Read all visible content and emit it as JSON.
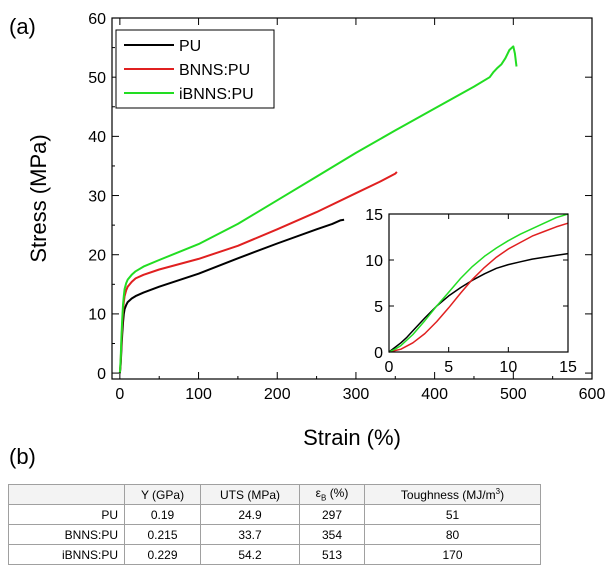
{
  "panels": {
    "a": "(a)",
    "b": "(b)"
  },
  "colors": {
    "PU": "#000000",
    "BNNS:PU": "#e02020",
    "iBNNS:PU": "#22dd22"
  },
  "chart_data": [
    {
      "type": "line",
      "title": "",
      "xlabel": "Strain (%)",
      "ylabel": "Stress (MPa)",
      "xlim": [
        -10,
        600
      ],
      "ylim": [
        -1,
        60
      ],
      "xticks": [
        0,
        100,
        200,
        300,
        400,
        500,
        600
      ],
      "yticks": [
        0,
        10,
        20,
        30,
        40,
        50,
        60
      ],
      "legend": "top-left",
      "series": [
        {
          "name": "PU",
          "color": "#000000",
          "x": [
            0,
            1,
            2,
            3,
            4,
            5,
            6,
            8,
            10,
            15,
            20,
            30,
            50,
            100,
            150,
            200,
            250,
            270,
            280,
            285
          ],
          "y": [
            0,
            1.5,
            4,
            6.5,
            8.5,
            10,
            10.8,
            11.5,
            12,
            12.6,
            13.0,
            13.6,
            14.6,
            16.8,
            19.4,
            21.9,
            24.3,
            25.2,
            25.8,
            25.9
          ]
        },
        {
          "name": "BNNS:PU",
          "color": "#e02020",
          "x": [
            0,
            1,
            2,
            3,
            4,
            5,
            6,
            8,
            10,
            15,
            20,
            30,
            50,
            100,
            150,
            200,
            250,
            300,
            330,
            350,
            352
          ],
          "y": [
            0,
            2,
            5,
            8,
            10.5,
            12,
            13,
            14,
            14.6,
            15.4,
            16.0,
            16.6,
            17.5,
            19.3,
            21.5,
            24.3,
            27.2,
            30.4,
            32.3,
            33.7,
            34.0
          ]
        },
        {
          "name": "iBNNS:PU",
          "color": "#22dd22",
          "x": [
            0,
            1,
            2,
            3,
            4,
            5,
            6,
            8,
            10,
            15,
            20,
            30,
            50,
            100,
            150,
            200,
            250,
            300,
            350,
            400,
            450,
            470,
            475,
            480,
            485,
            490,
            495,
            500,
            502,
            504
          ],
          "y": [
            0,
            2.5,
            6,
            9,
            11.5,
            13,
            14.2,
            15.2,
            15.8,
            16.6,
            17.2,
            18.0,
            19.1,
            21.8,
            25.2,
            29.2,
            33.2,
            37.2,
            41.0,
            44.7,
            48.4,
            50.0,
            50.9,
            51.6,
            52.2,
            53.2,
            54.6,
            55.2,
            54.0,
            51.8
          ]
        }
      ]
    },
    {
      "type": "line",
      "title": "",
      "xlabel": "",
      "ylabel": "",
      "xlim": [
        0,
        15
      ],
      "ylim": [
        0,
        15
      ],
      "xticks": [
        0,
        5,
        10,
        15
      ],
      "yticks": [
        0,
        5,
        10,
        15
      ],
      "legend": "none",
      "series": [
        {
          "name": "PU",
          "color": "#000000",
          "x": [
            0,
            0.5,
            1,
            1.5,
            2,
            3,
            4,
            5,
            6,
            7,
            8,
            9,
            10,
            11,
            12,
            13,
            14,
            15
          ],
          "y": [
            0,
            0.5,
            1.0,
            1.6,
            2.3,
            3.7,
            5.0,
            6.1,
            7.0,
            7.8,
            8.5,
            9.1,
            9.5,
            9.8,
            10.1,
            10.3,
            10.5,
            10.7
          ]
        },
        {
          "name": "BNNS:PU",
          "color": "#e02020",
          "x": [
            0,
            1,
            2,
            3,
            4,
            5,
            6,
            7,
            8,
            9,
            10,
            11,
            12,
            13,
            14,
            15
          ],
          "y": [
            0,
            0.3,
            1.0,
            2.0,
            3.3,
            4.8,
            6.4,
            7.9,
            9.2,
            10.3,
            11.2,
            11.9,
            12.6,
            13.1,
            13.6,
            14.0
          ]
        },
        {
          "name": "iBNNS:PU",
          "color": "#22dd22",
          "x": [
            0,
            0.5,
            1,
            2,
            3,
            4,
            5,
            6,
            7,
            8,
            9,
            10,
            11,
            12,
            13,
            14,
            15
          ],
          "y": [
            0,
            0.3,
            0.7,
            1.9,
            3.4,
            5.0,
            6.5,
            8.0,
            9.3,
            10.4,
            11.3,
            12.1,
            12.8,
            13.4,
            14.0,
            14.6,
            15.0
          ]
        }
      ]
    }
  ],
  "table": {
    "headers": [
      "Y (GPa)",
      "UTS (MPa)",
      "(%)",
      "Toughness (MJ/m",
      "3",
      ")"
    ],
    "eps_symbol": "ε",
    "eps_sub": "B",
    "rows": [
      {
        "name": "PU",
        "y": "0.19",
        "uts": "24.9",
        "eb": "297",
        "tough": "51"
      },
      {
        "name": "BNNS:PU",
        "y": "0.215",
        "uts": "33.7",
        "eb": "354",
        "tough": "80"
      },
      {
        "name": "iBNNS:PU",
        "y": "0.229",
        "uts": "54.2",
        "eb": "513",
        "tough": "170"
      }
    ]
  }
}
